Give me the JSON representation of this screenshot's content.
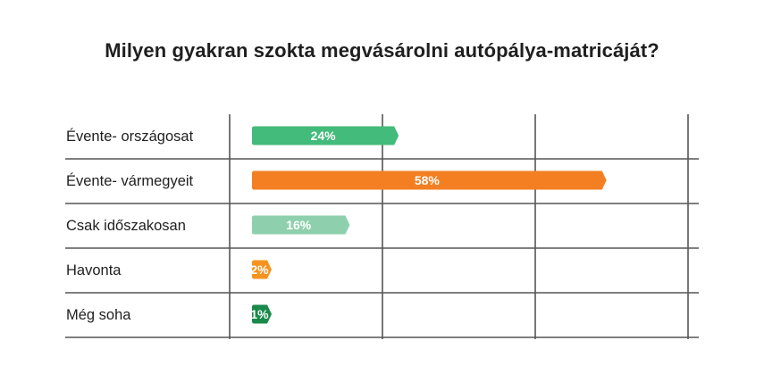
{
  "chart_data": {
    "type": "bar",
    "orientation": "horizontal",
    "title": "Milyen gyakran szokta megvásárolni autópálya-matricáját?",
    "categories": [
      "Évente- országosat",
      "Évente- vármegyeit",
      "Csak időszakosan",
      "Havonta",
      "Még soha"
    ],
    "values": [
      24,
      58,
      16,
      2,
      1
    ],
    "value_labels": [
      "24%",
      "58%",
      "16%",
      "2%",
      "1%"
    ],
    "colors": [
      "#43bb7a",
      "#f37f22",
      "#8ed0ad",
      "#f5931f",
      "#1a8a4a"
    ],
    "xlim": [
      0,
      75
    ],
    "x_gridlines": [
      0,
      25,
      50,
      75
    ],
    "grid": true,
    "legend": "none"
  }
}
